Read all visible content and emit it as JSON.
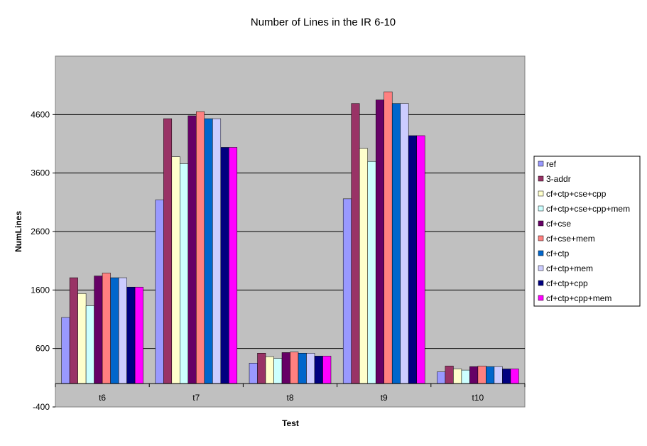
{
  "chart_data": {
    "type": "bar",
    "title": "Number of Lines in the IR 6-10",
    "xlabel": "Test",
    "ylabel": "NumLines",
    "categories": [
      "t6",
      "t7",
      "t8",
      "t9",
      "t10"
    ],
    "ylim": [
      -400,
      5600
    ],
    "yticks": [
      -400,
      600,
      1600,
      2600,
      3600,
      4600
    ],
    "grid": true,
    "legend_position": "right",
    "plot_background": "#c0c0c0",
    "series": [
      {
        "name": "ref",
        "color": "#9999ff",
        "values": [
          1130,
          3140,
          350,
          3160,
          200
        ]
      },
      {
        "name": "3-addr",
        "color": "#993366",
        "values": [
          1810,
          4530,
          520,
          4790,
          300
        ]
      },
      {
        "name": "cf+ctp+cse+cpp",
        "color": "#ffffcc",
        "values": [
          1540,
          3880,
          460,
          4020,
          250
        ]
      },
      {
        "name": "cf+ctp+cse+cpp+mem",
        "color": "#ccffff",
        "values": [
          1330,
          3760,
          430,
          3800,
          230
        ]
      },
      {
        "name": "cf+cse",
        "color": "#660066",
        "values": [
          1840,
          4580,
          530,
          4850,
          290
        ]
      },
      {
        "name": "cf+cse+mem",
        "color": "#ff8080",
        "values": [
          1890,
          4650,
          540,
          4990,
          300
        ]
      },
      {
        "name": "cf+ctp",
        "color": "#0066cc",
        "values": [
          1810,
          4530,
          520,
          4790,
          290
        ]
      },
      {
        "name": "cf+ctp+mem",
        "color": "#ccccff",
        "values": [
          1810,
          4530,
          520,
          4790,
          290
        ]
      },
      {
        "name": "cf+ctp+cpp",
        "color": "#000080",
        "values": [
          1650,
          4040,
          470,
          4240,
          250
        ]
      },
      {
        "name": "cf+ctp+cpp+mem",
        "color": "#ff00ff",
        "values": [
          1650,
          4040,
          470,
          4240,
          250
        ]
      }
    ]
  }
}
